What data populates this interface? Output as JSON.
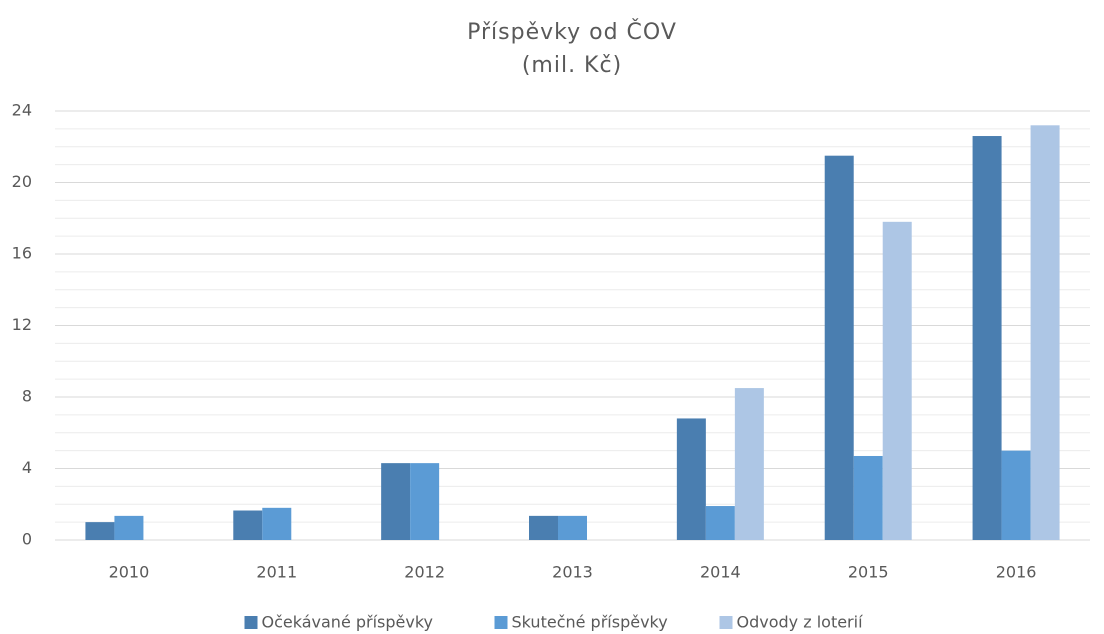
{
  "chart_data": {
    "type": "bar",
    "title": "Příspěvky od ČOV",
    "subtitle": "(mil. Kč)",
    "categories": [
      "2010",
      "2011",
      "2012",
      "2013",
      "2014",
      "2015",
      "2016"
    ],
    "series": [
      {
        "name": "Očekávané příspěvky",
        "color": "#4a7eb0",
        "values": [
          1.0,
          1.65,
          4.3,
          1.35,
          6.8,
          21.5,
          22.6
        ]
      },
      {
        "name": "Skutečné příspěvky",
        "color": "#5b9bd5",
        "values": [
          1.35,
          1.8,
          4.3,
          1.35,
          1.9,
          4.7,
          5.0
        ]
      },
      {
        "name": "Odvody z loterií",
        "color": "#adc6e5",
        "values": [
          null,
          null,
          null,
          null,
          8.5,
          17.8,
          23.2
        ]
      }
    ],
    "ylim": [
      0,
      24
    ],
    "yticks": [
      0,
      4,
      8,
      12,
      16,
      20,
      24
    ],
    "yminorticks": [
      1,
      2,
      3,
      5,
      6,
      7,
      9,
      10,
      11,
      13,
      14,
      15,
      17,
      18,
      19,
      21,
      22,
      23
    ],
    "grid": true,
    "legend": "bottom"
  }
}
